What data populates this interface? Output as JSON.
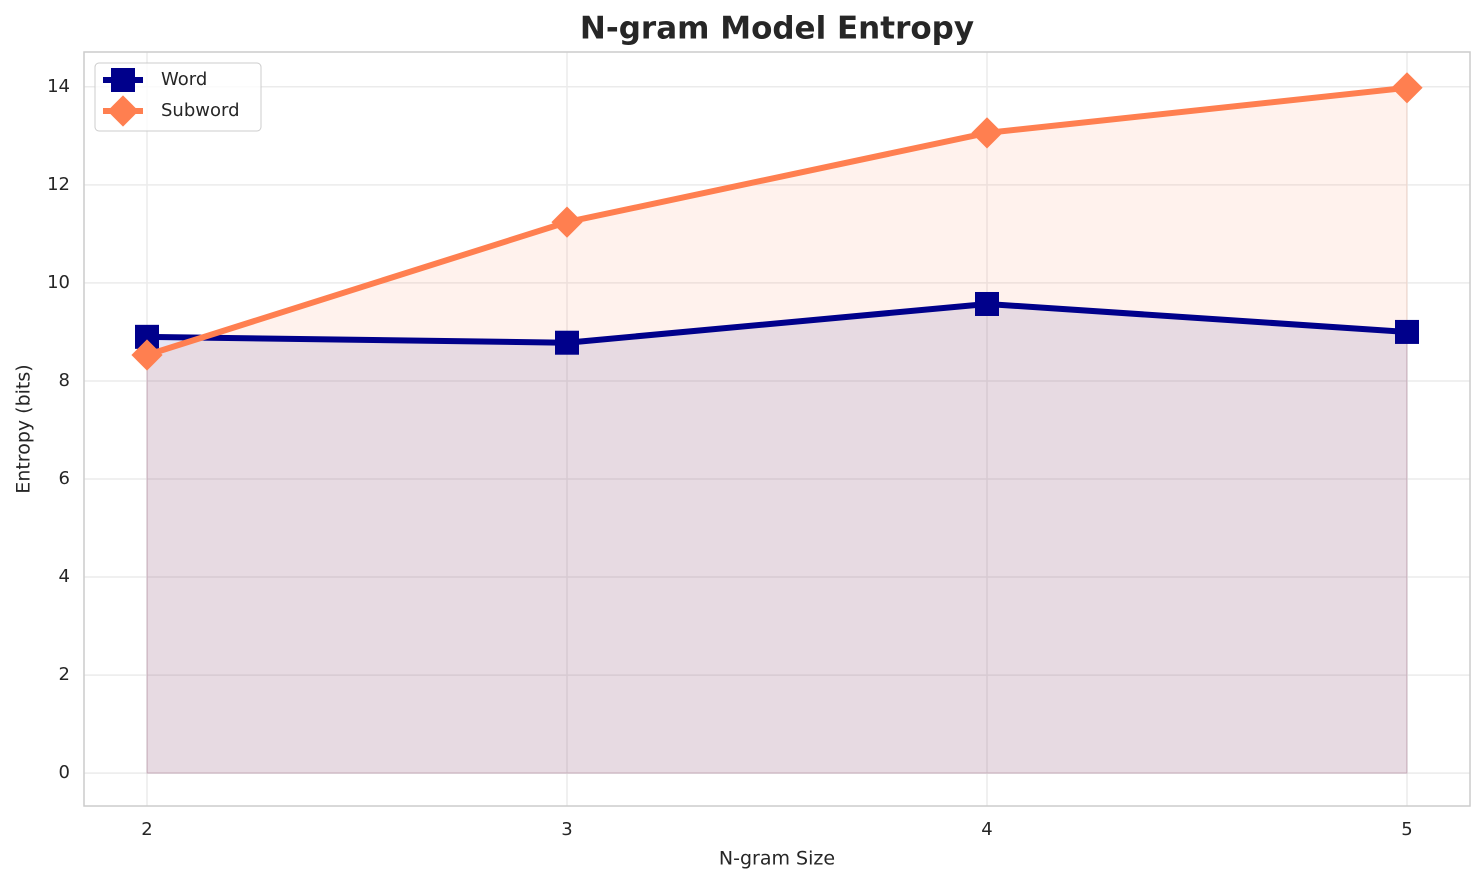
{
  "chart_data": {
    "type": "line",
    "title": "N-gram Model Entropy",
    "x_label": "N-gram Size",
    "y_label": "Entropy (bits)",
    "x": [
      2,
      3,
      4,
      5
    ],
    "series": [
      {
        "name": "Word",
        "color": "#00008b",
        "marker": "square",
        "fill": true,
        "values": [
          8.9,
          8.78,
          9.57,
          9.0
        ]
      },
      {
        "name": "Subword",
        "color": "#ff7f50",
        "marker": "diamond",
        "fill": true,
        "values": [
          8.53,
          11.24,
          13.06,
          13.98
        ]
      }
    ],
    "xlim": [
      1.85,
      5.15
    ],
    "xticks": [
      2,
      3,
      4,
      5
    ],
    "ylim": [
      -0.67,
      14.71
    ],
    "yticks": [
      0,
      2,
      4,
      6,
      8,
      10,
      12,
      14
    ],
    "grid": true,
    "legend": "upper left"
  }
}
